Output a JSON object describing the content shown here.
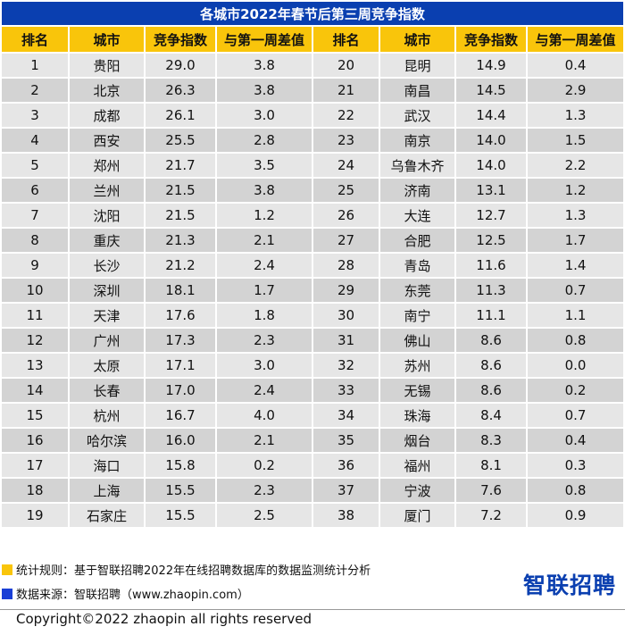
{
  "title": "各城市2022年春节后第三周竞争指数",
  "headers": [
    "排名",
    "城市",
    "竞争指数",
    "与第一周差值",
    "排名",
    "城市",
    "竞争指数",
    "与第一周差值"
  ],
  "rows": [
    [
      "1",
      "贵阳",
      "29.0",
      "3.8",
      "20",
      "昆明",
      "14.9",
      "0.4"
    ],
    [
      "2",
      "北京",
      "26.3",
      "3.8",
      "21",
      "南昌",
      "14.5",
      "2.9"
    ],
    [
      "3",
      "成都",
      "26.1",
      "3.0",
      "22",
      "武汉",
      "14.4",
      "1.3"
    ],
    [
      "4",
      "西安",
      "25.5",
      "2.8",
      "23",
      "南京",
      "14.0",
      "1.5"
    ],
    [
      "5",
      "郑州",
      "21.7",
      "3.5",
      "24",
      "乌鲁木齐",
      "14.0",
      "2.2"
    ],
    [
      "6",
      "兰州",
      "21.5",
      "3.8",
      "25",
      "济南",
      "13.1",
      "1.2"
    ],
    [
      "7",
      "沈阳",
      "21.5",
      "1.2",
      "26",
      "大连",
      "12.7",
      "1.3"
    ],
    [
      "8",
      "重庆",
      "21.3",
      "2.1",
      "27",
      "合肥",
      "12.5",
      "1.7"
    ],
    [
      "9",
      "长沙",
      "21.2",
      "2.4",
      "28",
      "青岛",
      "11.6",
      "1.4"
    ],
    [
      "10",
      "深圳",
      "18.1",
      "1.7",
      "29",
      "东莞",
      "11.3",
      "0.7"
    ],
    [
      "11",
      "天津",
      "17.6",
      "1.8",
      "30",
      "南宁",
      "11.1",
      "1.1"
    ],
    [
      "12",
      "广州",
      "17.3",
      "2.3",
      "31",
      "佛山",
      "8.6",
      "0.8"
    ],
    [
      "13",
      "太原",
      "17.1",
      "3.0",
      "32",
      "苏州",
      "8.6",
      "0.0"
    ],
    [
      "14",
      "长春",
      "17.0",
      "2.4",
      "33",
      "无锡",
      "8.6",
      "0.2"
    ],
    [
      "15",
      "杭州",
      "16.7",
      "4.0",
      "34",
      "珠海",
      "8.4",
      "0.7"
    ],
    [
      "16",
      "哈尔滨",
      "16.0",
      "2.1",
      "35",
      "烟台",
      "8.3",
      "0.4"
    ],
    [
      "17",
      "海口",
      "15.8",
      "0.2",
      "36",
      "福州",
      "8.1",
      "0.3"
    ],
    [
      "18",
      "上海",
      "15.5",
      "2.3",
      "37",
      "宁波",
      "7.6",
      "0.8"
    ],
    [
      "19",
      "石家庄",
      "15.5",
      "2.5",
      "38",
      "厦门",
      "7.2",
      "0.9"
    ]
  ],
  "notes": {
    "rule": "统计规则：基于智联招聘2022年在线招聘数据库的数据监测统计分析",
    "source": "数据来源：智联招聘（www.zhaopin.com）"
  },
  "brand": "智联招聘",
  "copyright": "Copyright©2022 zhaopin all rights reserved",
  "colors": {
    "title_bg": "#0a3fb0",
    "header_bg": "#f9c50b",
    "row_light": "#e6e6e6",
    "row_dark": "#d3d3d3",
    "rule_square": "#f9c50b",
    "source_square": "#1a3fd6"
  }
}
